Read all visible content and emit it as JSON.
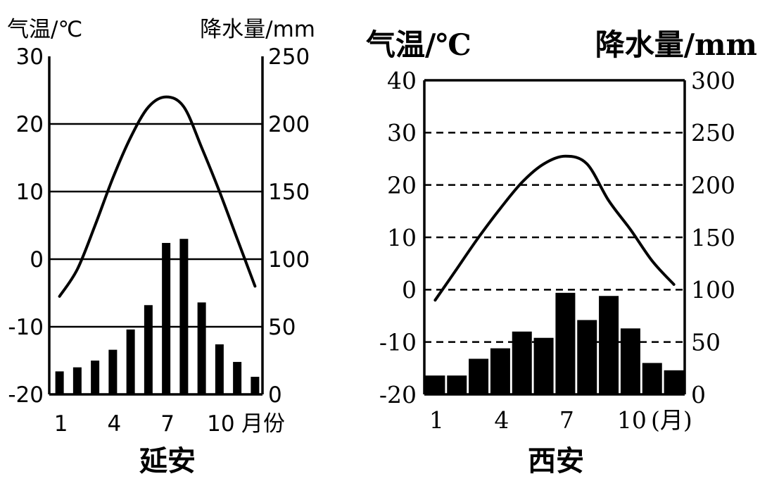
{
  "colors": {
    "ink": "#000000",
    "background": "#ffffff"
  },
  "chart_data": [
    {
      "type": "bar+line",
      "title": "延安",
      "left_axis_label": "气温/℃",
      "right_axis_label": "降水量/mm",
      "x_tick_labels": [
        "1",
        "4",
        "7",
        "10"
      ],
      "x_axis_unit": "月份",
      "temp_ticks": [
        "30",
        "20",
        "10",
        "0",
        "-10",
        "-20"
      ],
      "precip_ticks": [
        "250",
        "200",
        "150",
        "100",
        "50",
        "0"
      ],
      "temp_range": [
        -20,
        30
      ],
      "precip_range": [
        0,
        250
      ],
      "grid": "solid horizontal lines at 20, 10, 0, -10 °C",
      "months": [
        1,
        2,
        3,
        4,
        5,
        6,
        7,
        8,
        9,
        10,
        11,
        12
      ],
      "temperature": [
        -5.5,
        -1.5,
        5,
        12,
        18,
        22.5,
        24,
        22.5,
        16.5,
        10,
        3,
        -4
      ],
      "precipitation": [
        17,
        20,
        25,
        33,
        48,
        66,
        112,
        115,
        68,
        37,
        24,
        13
      ]
    },
    {
      "type": "bar+line",
      "title": "西安",
      "left_axis_label": "气温/℃",
      "right_axis_label": "降水量/mm",
      "x_tick_labels": [
        "1",
        "4",
        "7",
        "10"
      ],
      "x_axis_unit": "(月)",
      "temp_ticks": [
        "40",
        "30",
        "20",
        "10",
        "0",
        "-10",
        "-20"
      ],
      "precip_ticks": [
        "300",
        "250",
        "200",
        "150",
        "100",
        "50",
        "0"
      ],
      "temp_range": [
        -20,
        40
      ],
      "precip_range": [
        0,
        300
      ],
      "grid": "dashed horizontal lines at 30, 20, 10, 0, -10 °C",
      "months": [
        1,
        2,
        3,
        4,
        5,
        6,
        7,
        8,
        9,
        10,
        11,
        12
      ],
      "temperature": [
        -2,
        4,
        10,
        15.5,
        20.5,
        24,
        25.5,
        24,
        17,
        11.5,
        5.5,
        1
      ],
      "precipitation": [
        18,
        18,
        34,
        44,
        60,
        54,
        97,
        71,
        94,
        63,
        30,
        23
      ]
    }
  ]
}
